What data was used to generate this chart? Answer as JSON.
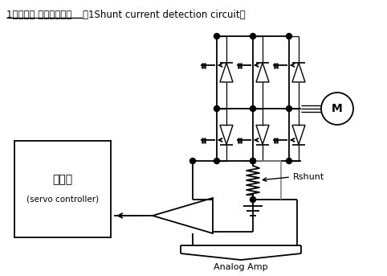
{
  "title_jp": "1シャント 電流検出回路",
  "title_en": "（1Shunt current detection circuit）",
  "bg_color": "#ffffff",
  "line_color": "#000000",
  "figsize": [
    4.82,
    3.43
  ],
  "dpi": 100,
  "controller_label1": "制御器",
  "controller_label2": "(servo controller)",
  "rshunt_label": "Rshunt",
  "motor_label": "M",
  "amp_label": "Analog Amp"
}
